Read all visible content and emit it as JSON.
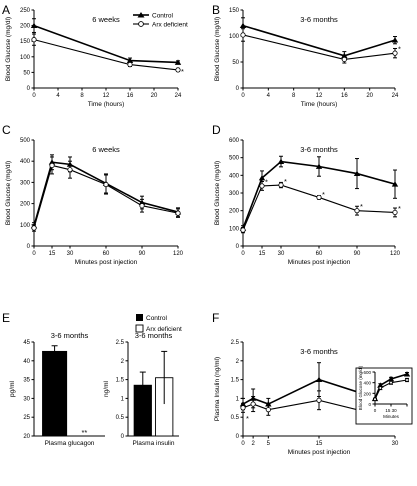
{
  "legend": {
    "control": "Control",
    "arx": "Arx deficient"
  },
  "chart_data": [
    {
      "id": "A",
      "type": "line",
      "title": "6 weeks",
      "xlabel": "Time (hours)",
      "ylabel": "Blood Glucose (mg/dl)",
      "xlim": [
        0,
        24
      ],
      "ylim": [
        0,
        250
      ],
      "xticks": [
        0,
        4,
        8,
        12,
        16,
        20,
        24
      ],
      "yticks": [
        0,
        50,
        100,
        150,
        200,
        250
      ],
      "x": [
        0,
        16,
        24
      ],
      "series": [
        {
          "name": "Control",
          "values": [
            200,
            88,
            82
          ],
          "err": [
            22,
            8,
            5
          ]
        },
        {
          "name": "Arx deficient",
          "values": [
            155,
            75,
            58
          ],
          "err": [
            18,
            6,
            5
          ]
        }
      ],
      "stars": [
        {
          "x": 24,
          "y": 58,
          "text": "*"
        }
      ]
    },
    {
      "id": "B",
      "type": "line",
      "title": "3-6 months",
      "xlabel": "Time (hours)",
      "ylabel": "Blood Glucose (mg/dl)",
      "xlim": [
        0,
        24
      ],
      "ylim": [
        0,
        150
      ],
      "xticks": [
        0,
        4,
        8,
        12,
        16,
        20,
        24
      ],
      "yticks": [
        0,
        50,
        100,
        150
      ],
      "x": [
        0,
        16,
        24
      ],
      "series": [
        {
          "name": "Control",
          "values": [
            120,
            62,
            92
          ],
          "err": [
            15,
            8,
            7
          ]
        },
        {
          "name": "Arx deficient",
          "values": [
            102,
            55,
            67
          ],
          "err": [
            12,
            7,
            9
          ]
        }
      ],
      "stars": [
        {
          "x": 24,
          "y": 78,
          "text": "*"
        }
      ]
    },
    {
      "id": "C",
      "type": "line",
      "title": "6 weeks",
      "xlabel": "Minutes post injection",
      "ylabel": "Blood Glucose (mg/dl)",
      "xlim": [
        0,
        120
      ],
      "ylim": [
        0,
        500
      ],
      "xticks": [
        0,
        15,
        30,
        60,
        90,
        120
      ],
      "yticks": [
        0,
        100,
        200,
        300,
        400,
        500
      ],
      "x": [
        0,
        15,
        30,
        60,
        90,
        120
      ],
      "series": [
        {
          "name": "Control",
          "values": [
            95,
            395,
            385,
            295,
            205,
            160
          ],
          "err": [
            15,
            35,
            35,
            45,
            30,
            20
          ]
        },
        {
          "name": "Arx deficient",
          "values": [
            85,
            380,
            360,
            290,
            190,
            155
          ],
          "err": [
            15,
            40,
            40,
            45,
            30,
            20
          ]
        }
      ],
      "stars": []
    },
    {
      "id": "D",
      "type": "line",
      "title": "3-6 months",
      "xlabel": "Minutes post injection",
      "ylabel": "Blood Glucose (mg/dl)",
      "xlim": [
        0,
        120
      ],
      "ylim": [
        0,
        600
      ],
      "xticks": [
        0,
        15,
        30,
        60,
        90,
        120
      ],
      "yticks": [
        0,
        100,
        200,
        300,
        400,
        500,
        600
      ],
      "x": [
        0,
        15,
        30,
        60,
        90,
        120
      ],
      "series": [
        {
          "name": "Control",
          "values": [
            100,
            385,
            478,
            450,
            410,
            350
          ],
          "err": [
            15,
            40,
            30,
            55,
            85,
            80
          ]
        },
        {
          "name": "Arx deficient",
          "values": [
            90,
            340,
            345,
            275,
            200,
            190
          ],
          "err": [
            15,
            25,
            15,
            10,
            25,
            25
          ]
        }
      ],
      "stars": [
        {
          "x": 15,
          "y": 372,
          "text": "*"
        },
        {
          "x": 30,
          "y": 375,
          "text": "*"
        },
        {
          "x": 60,
          "y": 300,
          "text": "*"
        },
        {
          "x": 90,
          "y": 232,
          "text": "*"
        },
        {
          "x": 120,
          "y": 220,
          "text": "*"
        }
      ]
    },
    {
      "id": "E1",
      "type": "bar",
      "title": "3-6 months",
      "categories": [
        "Plasma glucagon"
      ],
      "ylabel": "pg/ml",
      "ylim": [
        20,
        45
      ],
      "yticks": [
        20,
        25,
        30,
        35,
        40,
        45
      ],
      "series": [
        {
          "name": "Control",
          "values": [
            42.5
          ],
          "err": [
            1.5
          ]
        },
        {
          "name": "Arx deficient",
          "values": [
            20
          ],
          "err": [
            0
          ]
        }
      ],
      "stars": [
        {
          "text": "**"
        }
      ]
    },
    {
      "id": "E2",
      "type": "bar",
      "title": "3-6 months",
      "categories": [
        "Plasma insulin"
      ],
      "ylabel": "ng/ml",
      "ylim": [
        0,
        2.5
      ],
      "yticks": [
        0,
        0.5,
        1,
        1.5,
        2,
        2.5
      ],
      "series": [
        {
          "name": "Control",
          "values": [
            1.35
          ],
          "err": [
            0.35
          ]
        },
        {
          "name": "Arx deficient",
          "values": [
            1.55
          ],
          "err": [
            0.7
          ]
        }
      ]
    },
    {
      "id": "F",
      "type": "line",
      "title": "3-6 months",
      "xlabel": "Minutes post injection",
      "ylabel": "Plasma Insulin (ng/ml)",
      "xlim": [
        0,
        30
      ],
      "ylim": [
        0,
        2.5
      ],
      "xticks": [
        0,
        2,
        5,
        15,
        30
      ],
      "yticks": [
        0,
        0.5,
        1,
        1.5,
        2,
        2.5
      ],
      "x": [
        0,
        2,
        5,
        15,
        30
      ],
      "series": [
        {
          "name": "Control",
          "values": [
            0.85,
            1.0,
            0.85,
            1.5,
            0.85
          ],
          "err": [
            0.15,
            0.25,
            0.15,
            0.45,
            0.15
          ]
        },
        {
          "name": "Arx deficient",
          "values": [
            0.75,
            0.85,
            0.7,
            0.95,
            0.45
          ],
          "err": [
            0.12,
            0.2,
            0.15,
            0.25,
            0.1
          ]
        }
      ],
      "stars": [
        {
          "x": 0,
          "y": 0.5,
          "text": "*"
        },
        {
          "x": 30,
          "y": 0.45,
          "text": "*"
        }
      ]
    },
    {
      "id": "F-inset",
      "type": "line",
      "title": "",
      "xlabel": "Minutes",
      "ylabel": "Blood Glucose (mg/dl)",
      "xlim": [
        0,
        30
      ],
      "ylim": [
        0,
        600
      ],
      "xticks": [
        0,
        15,
        30
      ],
      "xticklabels": [
        "0",
        "15 30",
        ""
      ],
      "yticks": [
        0,
        200,
        400,
        600
      ],
      "x": [
        0,
        5,
        15,
        30
      ],
      "series": [
        {
          "name": "Control",
          "values": [
            100,
            350,
            470,
            560
          ],
          "err": [
            10,
            30,
            30,
            30
          ]
        },
        {
          "name": "Arx deficient",
          "values": [
            90,
            300,
            400,
            450
          ],
          "err": [
            10,
            30,
            30,
            30
          ]
        }
      ]
    }
  ]
}
